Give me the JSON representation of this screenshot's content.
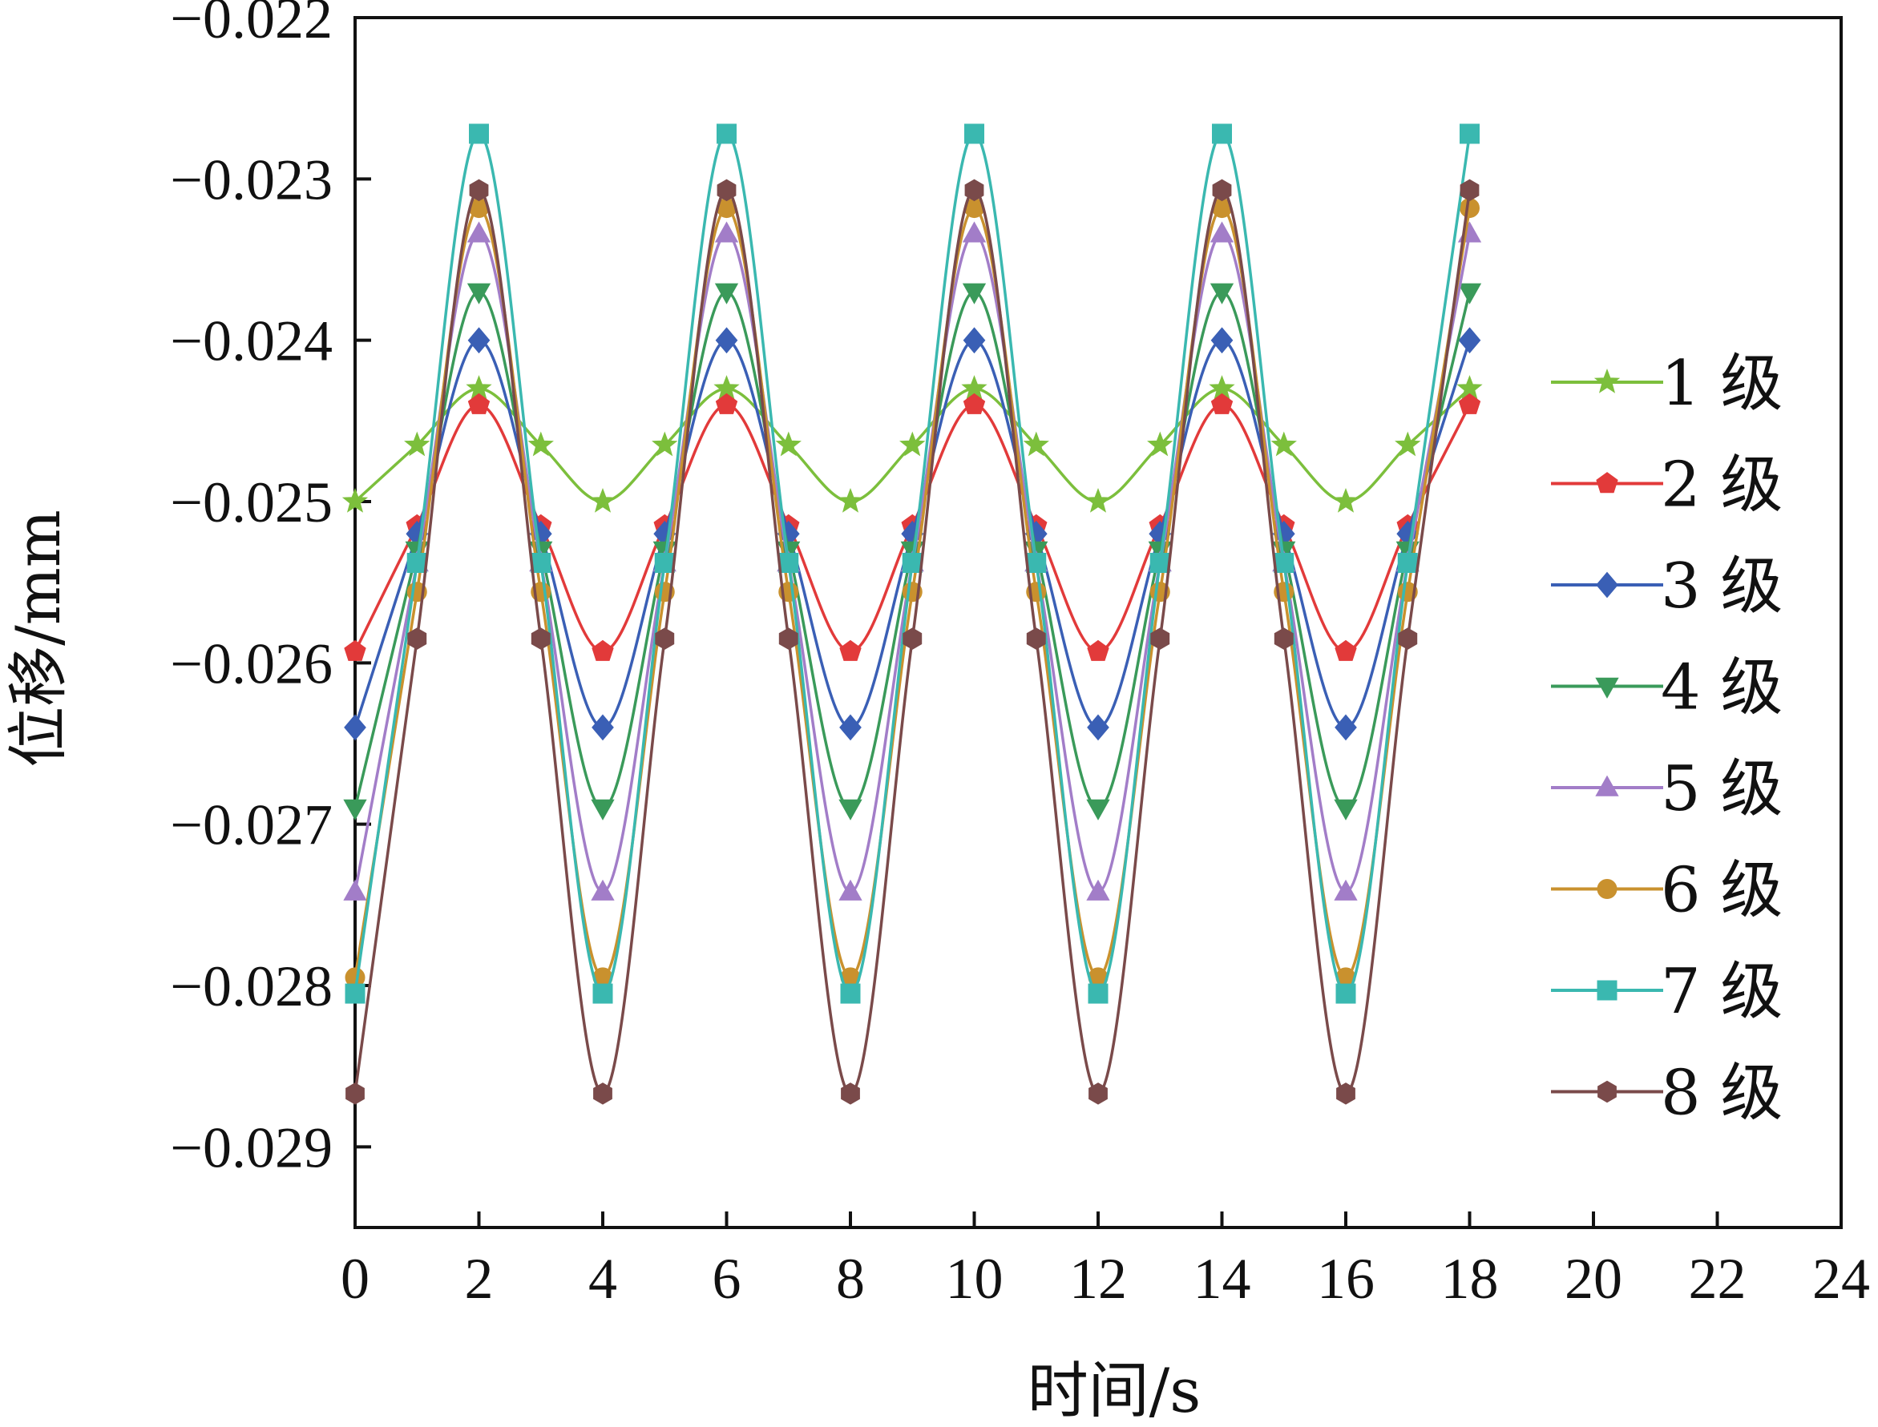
{
  "chart_data": {
    "type": "line",
    "title": "",
    "xlabel": "时间/s",
    "ylabel": "位移/mm",
    "xlim": [
      0,
      24
    ],
    "ylim": [
      -0.0295,
      -0.022
    ],
    "x_ticks": [
      0,
      2,
      4,
      6,
      8,
      10,
      12,
      14,
      16,
      18,
      20,
      22,
      24
    ],
    "x_tick_labels": [
      "0",
      "2",
      "4",
      "6",
      "8",
      "10",
      "12",
      "14",
      "16",
      "18",
      "20",
      "22",
      "24"
    ],
    "y_ticks": [
      -0.022,
      -0.023,
      -0.024,
      -0.025,
      -0.026,
      -0.027,
      -0.028,
      -0.029
    ],
    "y_tick_labels": [
      "−0.022",
      "−0.023",
      "−0.024",
      "−0.025",
      "−0.026",
      "−0.027",
      "−0.028",
      "−0.029"
    ],
    "grid": false,
    "legend_position": "right",
    "x": [
      0,
      1,
      2,
      3,
      4,
      5,
      6,
      7,
      8,
      9,
      10,
      11,
      12,
      13,
      14,
      15,
      16,
      17,
      18
    ],
    "series": [
      {
        "name": "1 级",
        "color": "#7cbf3c",
        "marker": "star",
        "values": [
          -0.025,
          -0.02465,
          -0.0243,
          -0.02465,
          -0.025,
          -0.02465,
          -0.0243,
          -0.02465,
          -0.025,
          -0.02465,
          -0.0243,
          -0.02465,
          -0.025,
          -0.02465,
          -0.0243,
          -0.02465,
          -0.025,
          -0.02465,
          -0.0243
        ]
      },
      {
        "name": "2 级",
        "color": "#e23a3a",
        "marker": "pentagon",
        "values": [
          -0.02593,
          -0.02515,
          -0.0244,
          -0.02515,
          -0.02593,
          -0.02515,
          -0.0244,
          -0.02515,
          -0.02593,
          -0.02515,
          -0.0244,
          -0.02515,
          -0.02593,
          -0.02515,
          -0.0244,
          -0.02515,
          -0.02593,
          -0.02515,
          -0.0244
        ]
      },
      {
        "name": "3 级",
        "color": "#3a5fb5",
        "marker": "diamond",
        "values": [
          -0.0264,
          -0.0252,
          -0.024,
          -0.0252,
          -0.0264,
          -0.0252,
          -0.024,
          -0.0252,
          -0.0264,
          -0.0252,
          -0.024,
          -0.0252,
          -0.0264,
          -0.0252,
          -0.024,
          -0.0252,
          -0.0264,
          -0.0252,
          -0.024
        ]
      },
      {
        "name": "4 级",
        "color": "#3a9a5a",
        "marker": "triangle-down",
        "values": [
          -0.0269,
          -0.0253,
          -0.0237,
          -0.0253,
          -0.0269,
          -0.0253,
          -0.0237,
          -0.0253,
          -0.0269,
          -0.0253,
          -0.0237,
          -0.0253,
          -0.0269,
          -0.0253,
          -0.0237,
          -0.0253,
          -0.0269,
          -0.0253,
          -0.0237
        ]
      },
      {
        "name": "5 级",
        "color": "#a27dc8",
        "marker": "triangle-up",
        "values": [
          -0.02742,
          -0.02538,
          -0.02334,
          -0.02538,
          -0.02742,
          -0.02538,
          -0.02334,
          -0.02538,
          -0.02742,
          -0.02538,
          -0.02334,
          -0.02538,
          -0.02742,
          -0.02538,
          -0.02334,
          -0.02538,
          -0.02742,
          -0.02538,
          -0.02334
        ]
      },
      {
        "name": "6 级",
        "color": "#c9912e",
        "marker": "circle",
        "values": [
          -0.02795,
          -0.02556,
          -0.02318,
          -0.02556,
          -0.02795,
          -0.02556,
          -0.02318,
          -0.02556,
          -0.02795,
          -0.02556,
          -0.02318,
          -0.02556,
          -0.02795,
          -0.02556,
          -0.02318,
          -0.02556,
          -0.02795,
          -0.02556,
          -0.02318
        ]
      },
      {
        "name": "7 级",
        "color": "#3ab8b0",
        "marker": "square",
        "values": [
          -0.02805,
          -0.02538,
          -0.02272,
          -0.02538,
          -0.02805,
          -0.02538,
          -0.02272,
          -0.02538,
          -0.02805,
          -0.02538,
          -0.02272,
          -0.02538,
          -0.02805,
          -0.02538,
          -0.02272,
          -0.02538,
          -0.02805,
          -0.02538,
          -0.02272
        ]
      },
      {
        "name": "8 级",
        "color": "#7a4a4a",
        "marker": "hexagon",
        "values": [
          -0.02867,
          -0.02585,
          -0.02307,
          -0.02585,
          -0.02867,
          -0.02585,
          -0.02307,
          -0.02585,
          -0.02867,
          -0.02585,
          -0.02307,
          -0.02585,
          -0.02867,
          -0.02585,
          -0.02307,
          -0.02585,
          -0.02867,
          -0.02585,
          -0.02307
        ]
      }
    ]
  }
}
